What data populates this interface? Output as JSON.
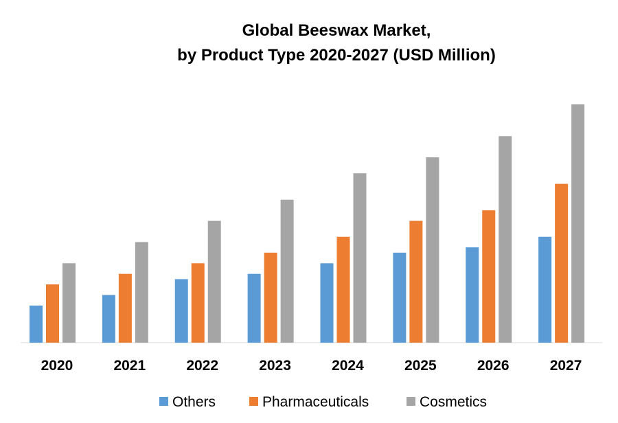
{
  "chart_data": {
    "type": "bar",
    "title": "Global Beeswax Market,",
    "subtitle": "by Product Type 2020-2027 (USD Million)",
    "categories": [
      "2020",
      "2021",
      "2022",
      "2023",
      "2024",
      "2025",
      "2026",
      "2027"
    ],
    "series": [
      {
        "name": "Others",
        "color": "#5B9BD5",
        "values": [
          7,
          9,
          12,
          13,
          15,
          17,
          18,
          20
        ]
      },
      {
        "name": "Pharmaceuticals",
        "color": "#ED7D31",
        "values": [
          11,
          13,
          15,
          17,
          20,
          23,
          25,
          30
        ]
      },
      {
        "name": "Cosmetics",
        "color": "#A5A5A5",
        "values": [
          15,
          19,
          23,
          27,
          32,
          35,
          39,
          45
        ]
      }
    ],
    "ylim": [
      0,
      45
    ],
    "y_axis_visible": false,
    "grid": false,
    "legend_position": "bottom"
  }
}
